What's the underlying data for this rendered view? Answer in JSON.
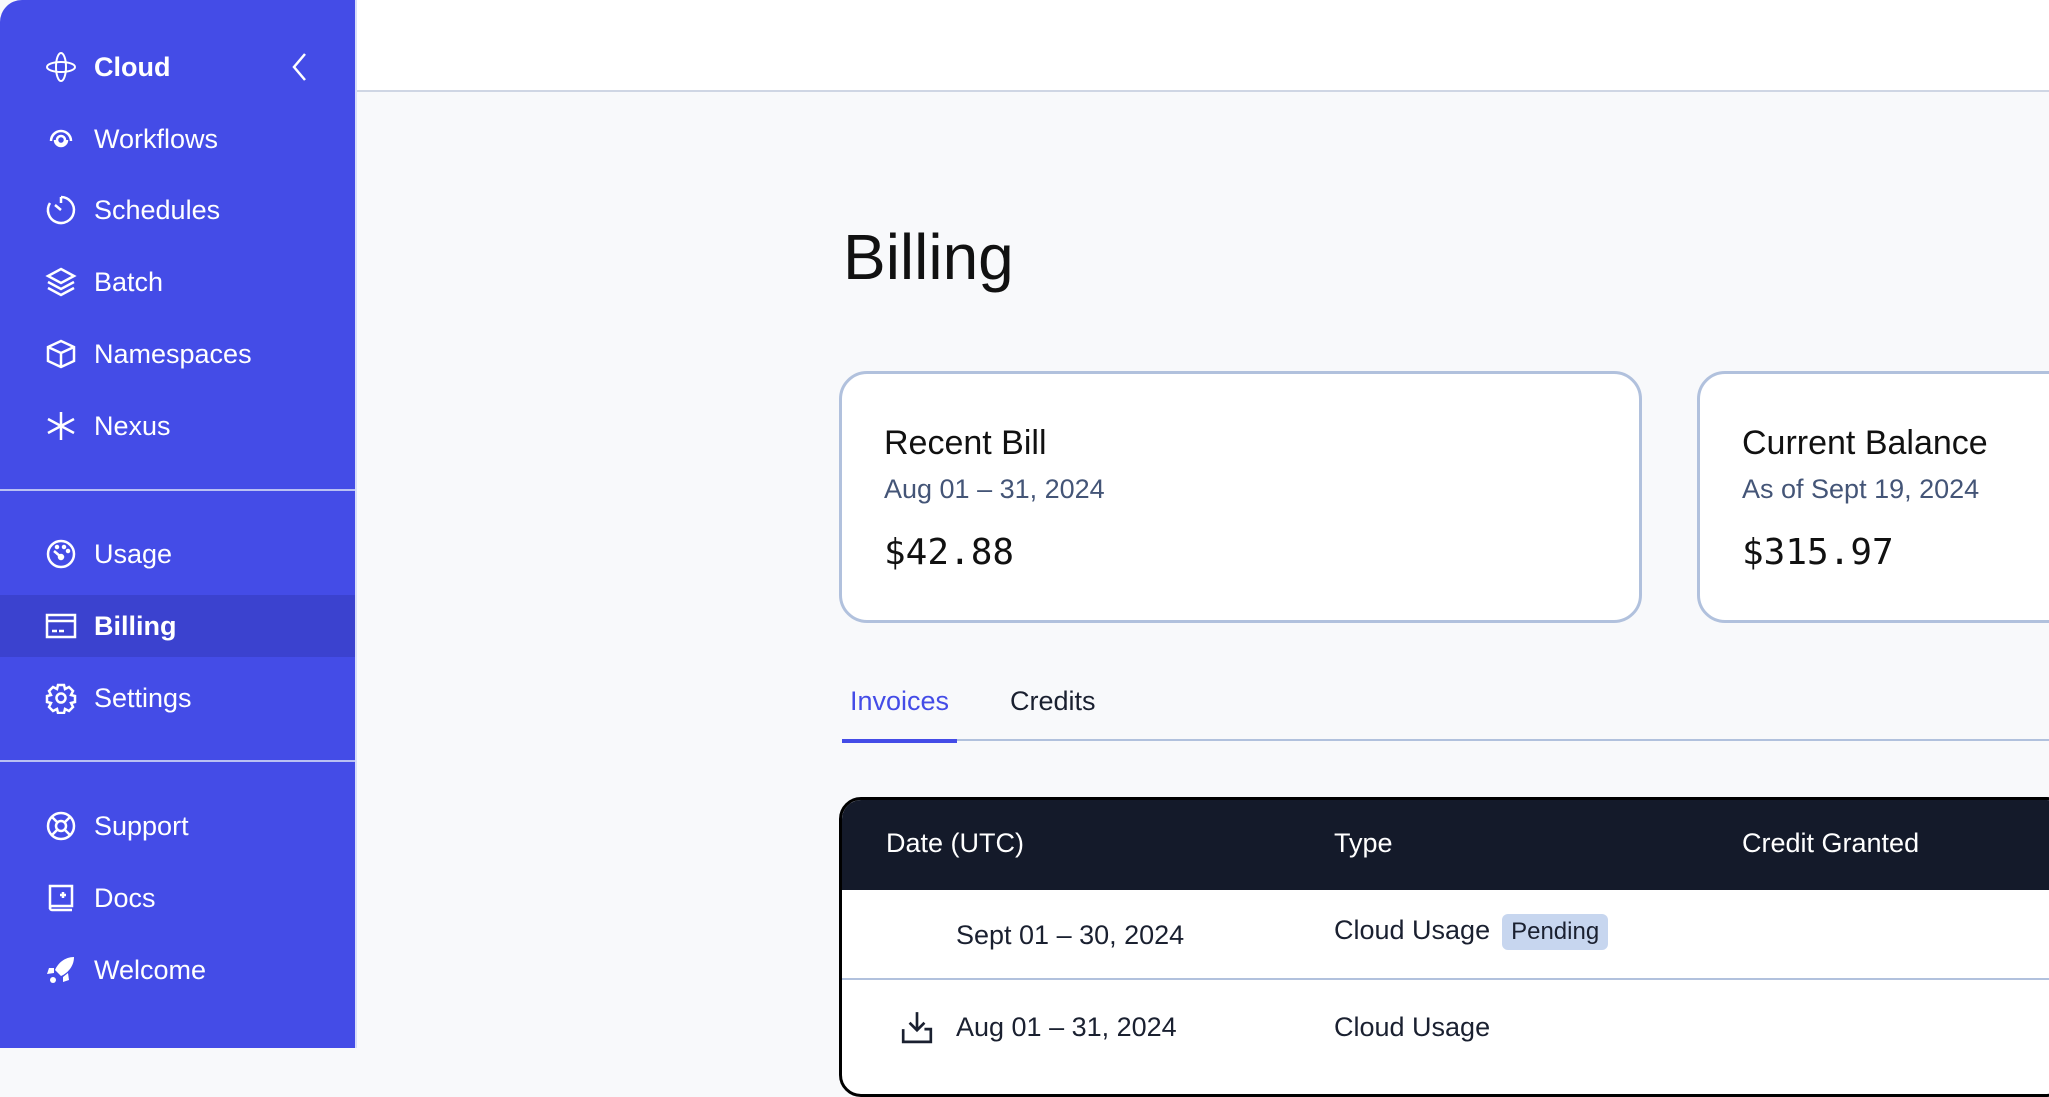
{
  "sidebar": {
    "header": {
      "label": "Cloud",
      "icon": "temporal-cloud-icon",
      "collapse_icon": "chevron-left-icon"
    },
    "items": [
      {
        "label": "Workflows",
        "icon": "workflows-icon"
      },
      {
        "label": "Schedules",
        "icon": "timer-icon"
      },
      {
        "label": "Batch",
        "icon": "layers-icon"
      },
      {
        "label": "Namespaces",
        "icon": "cube-icon"
      },
      {
        "label": "Nexus",
        "icon": "asterisk-icon"
      },
      {
        "label": "Usage",
        "icon": "gauge-icon"
      },
      {
        "label": "Billing",
        "icon": "credit-card-icon",
        "active": true
      },
      {
        "label": "Settings",
        "icon": "gear-icon"
      },
      {
        "label": "Support",
        "icon": "lifebuoy-icon"
      },
      {
        "label": "Docs",
        "icon": "book-icon"
      },
      {
        "label": "Welcome",
        "icon": "rocket-icon"
      }
    ],
    "accent": "#444ce7"
  },
  "page": {
    "title": "Billing"
  },
  "cards": [
    {
      "title": "Recent Bill",
      "subtitle": "Aug 01 – 31, 2024",
      "amount": "$42.88"
    },
    {
      "title": "Current Balance",
      "subtitle": "As of Sept 19, 2024",
      "amount": "$315.97"
    }
  ],
  "tabs": [
    {
      "label": "Invoices",
      "active": true
    },
    {
      "label": "Credits"
    }
  ],
  "table": {
    "columns": [
      "Date (UTC)",
      "Type",
      "Credit Granted"
    ],
    "rows": [
      {
        "date": "Sept 01 – 30, 2024",
        "type": "Cloud Usage",
        "badge": "Pending"
      },
      {
        "date": "Aug 01 – 31, 2024",
        "type": "Cloud Usage",
        "icon": "download-icon"
      }
    ]
  }
}
